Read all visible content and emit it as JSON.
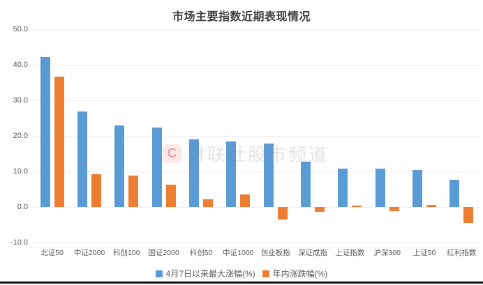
{
  "title": "市场主要指数近期表现情况",
  "watermark": {
    "logo_letter": "C",
    "text": "财联社股市频道"
  },
  "colors": {
    "series1": "#5B9BD5",
    "series2": "#ED7D31",
    "gridline": "#ececec",
    "axis_text": "#595959",
    "title_text": "#404040"
  },
  "chart_data": {
    "type": "bar",
    "title": "市场主要指数近期表现情况",
    "categories": [
      "北证50",
      "中证2000",
      "科创100",
      "国证2000",
      "科创50",
      "中证1000",
      "创业板指",
      "深证成指",
      "上证指数",
      "沪深300",
      "上证50",
      "红利指数"
    ],
    "series": [
      {
        "name": "4月7日以来最大涨幅(%)",
        "color": "#5B9BD5",
        "values": [
          42.2,
          26.8,
          23.0,
          22.3,
          19.0,
          18.5,
          17.8,
          12.8,
          10.8,
          10.7,
          10.3,
          7.6
        ]
      },
      {
        "name": "年内涨跌幅(%)",
        "color": "#ED7D31",
        "values": [
          36.6,
          9.3,
          8.8,
          6.3,
          2.2,
          3.5,
          -3.6,
          -1.3,
          0.4,
          -1.2,
          0.6,
          -4.6
        ]
      }
    ],
    "xlabel": "",
    "ylabel": "",
    "ylim": [
      -10,
      50
    ],
    "ytick_step": 10,
    "ytick_format": "one_decimal",
    "grid": true,
    "legend_position": "bottom"
  }
}
